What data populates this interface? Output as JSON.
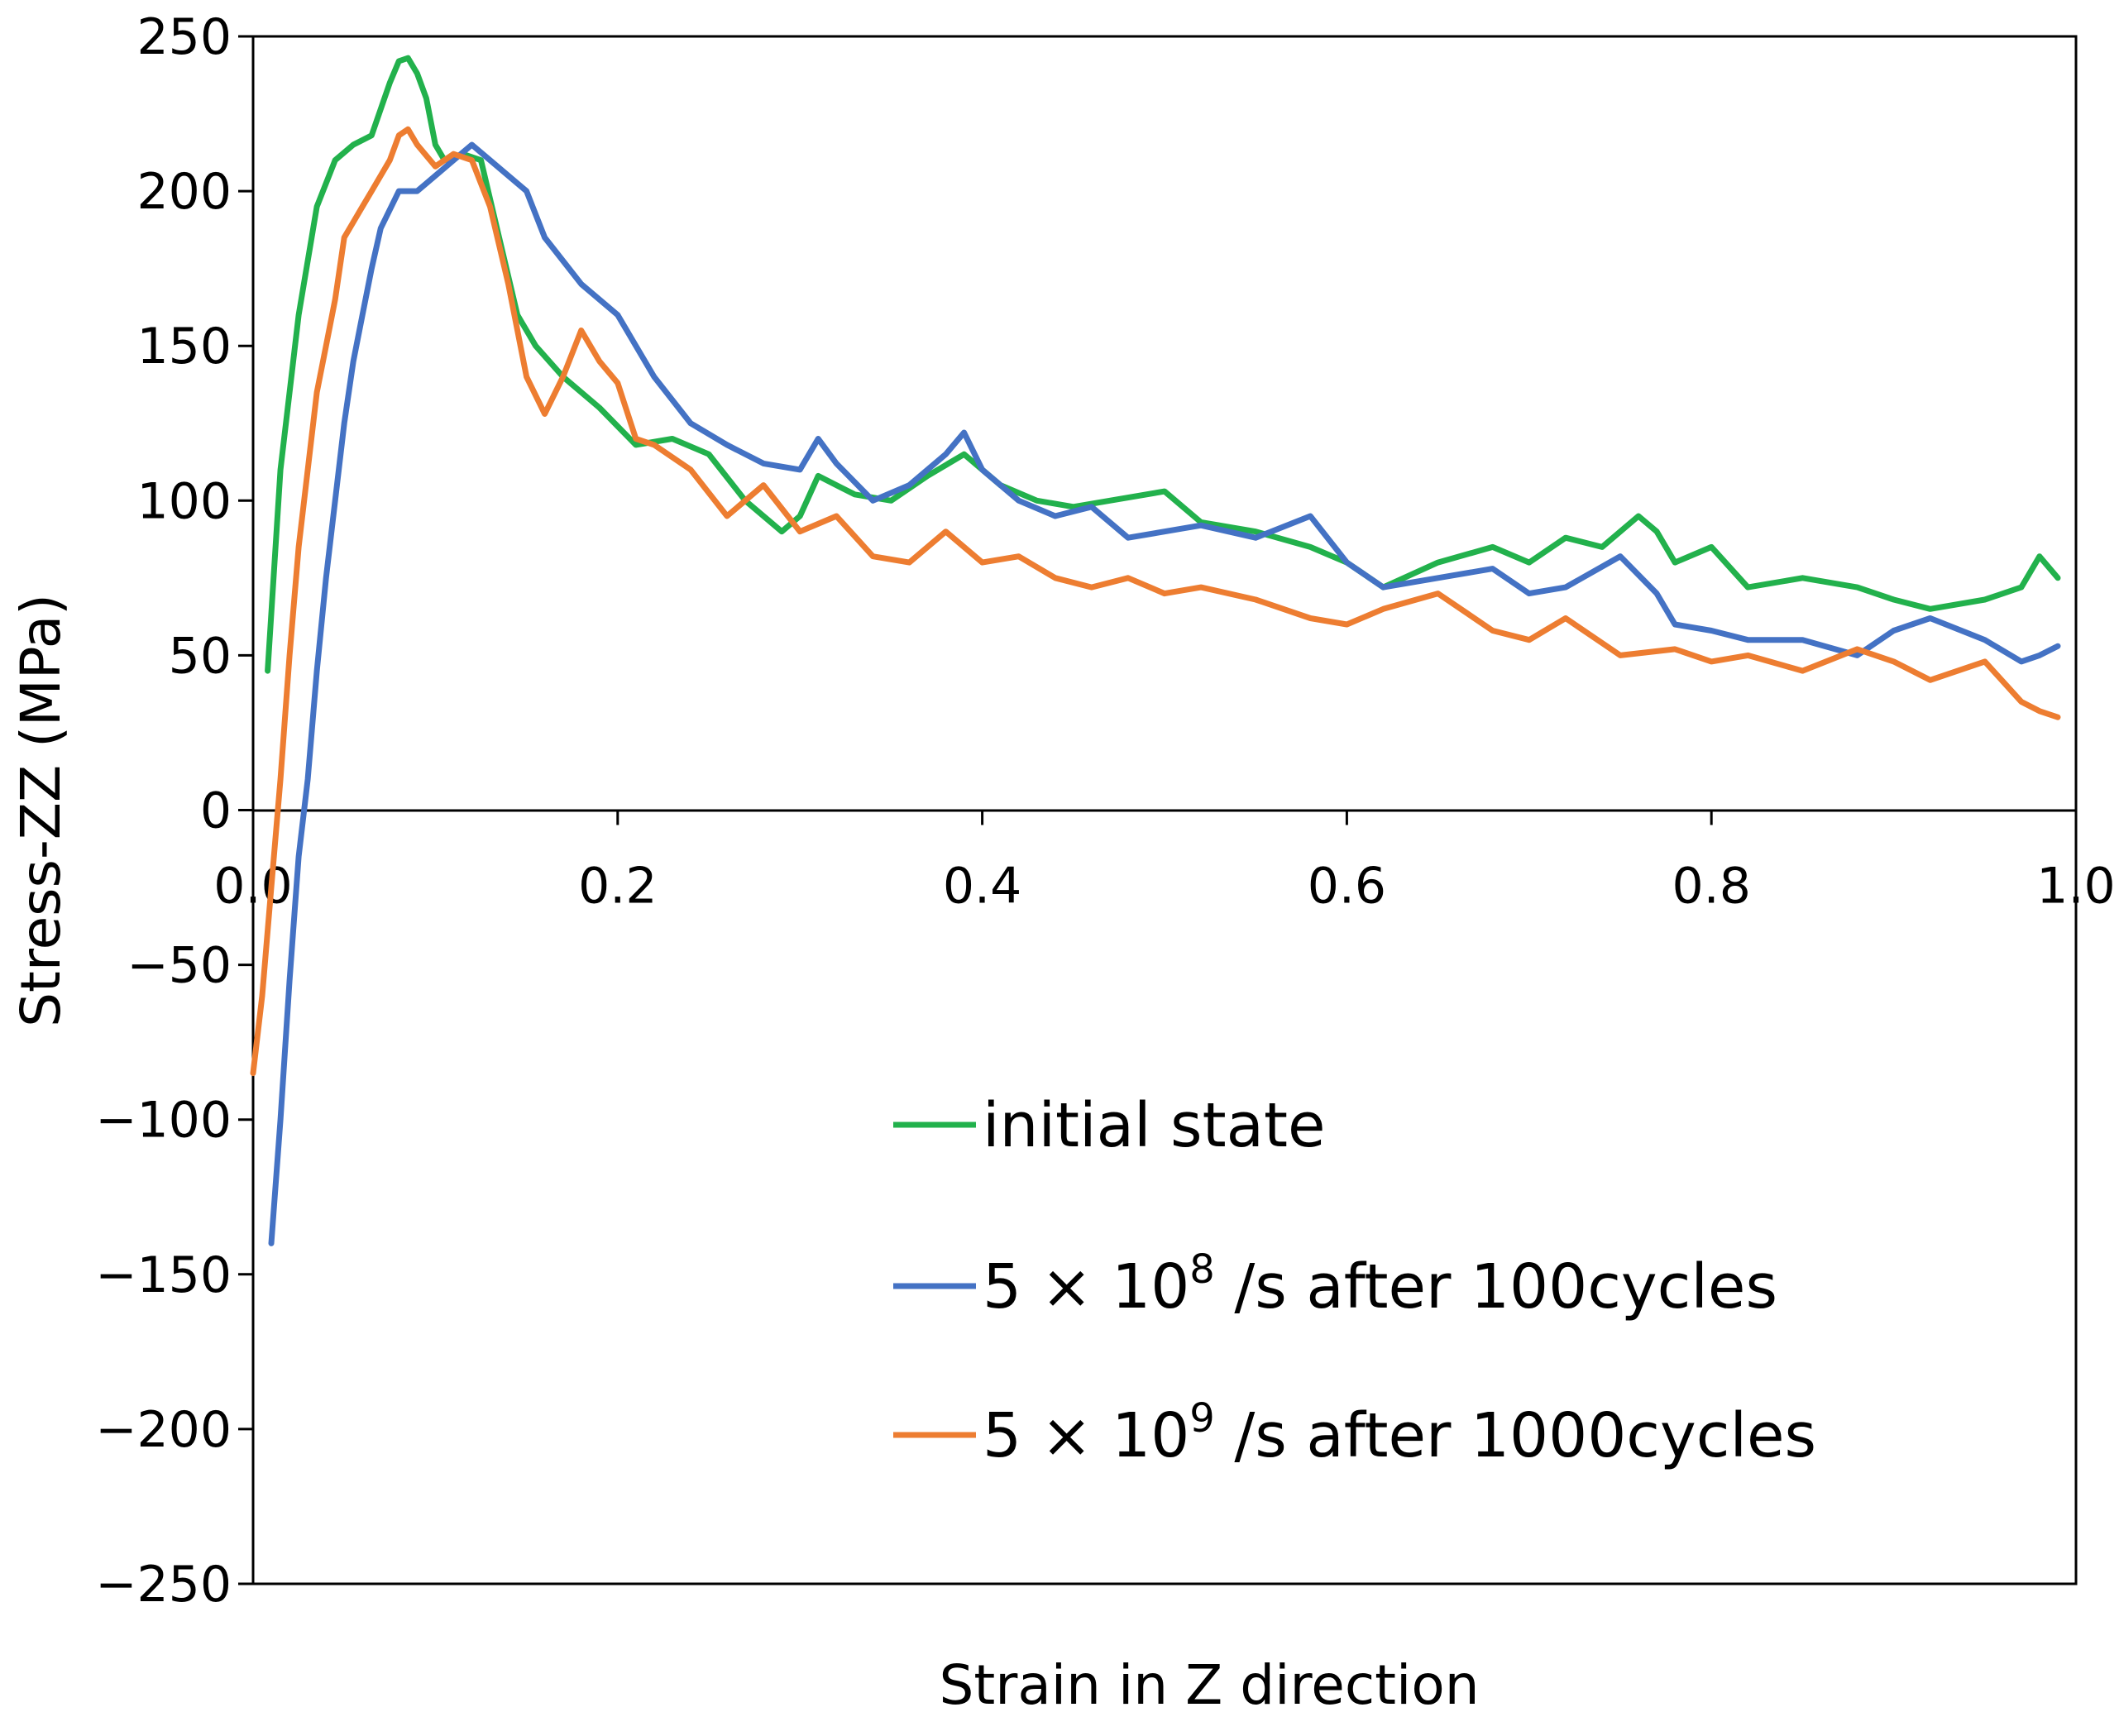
{
  "chart_data": {
    "type": "line",
    "title": "",
    "xlabel": "Strain in Z direction",
    "ylabel": "Stress-ZZ (MPa)",
    "xlim": [
      0.0,
      1.0
    ],
    "ylim": [
      -250,
      250
    ],
    "x_ticks": [
      "0.0",
      "0.2",
      "0.4",
      "0.6",
      "0.8",
      "1.0"
    ],
    "y_ticks": [
      "250",
      "200",
      "150",
      "100",
      "50",
      "0",
      "−50",
      "−100",
      "−150",
      "−200",
      "−250"
    ],
    "grid": false,
    "legend_position": "lower-right",
    "series": [
      {
        "name": "initial state",
        "legend_main": "initial state",
        "legend_sup": "",
        "legend_tail": "",
        "color": "#22b14c",
        "x": [
          0.008,
          0.015,
          0.025,
          0.035,
          0.045,
          0.055,
          0.065,
          0.075,
          0.08,
          0.085,
          0.09,
          0.095,
          0.1,
          0.105,
          0.115,
          0.125,
          0.135,
          0.145,
          0.155,
          0.17,
          0.19,
          0.21,
          0.23,
          0.25,
          0.27,
          0.29,
          0.3,
          0.31,
          0.33,
          0.35,
          0.37,
          0.39,
          0.41,
          0.43,
          0.45,
          0.47,
          0.5,
          0.52,
          0.55,
          0.58,
          0.6,
          0.62,
          0.65,
          0.68,
          0.7,
          0.72,
          0.74,
          0.76,
          0.77,
          0.78,
          0.8,
          0.82,
          0.85,
          0.88,
          0.9,
          0.92,
          0.95,
          0.97,
          0.98,
          0.99
        ],
        "y": [
          45,
          110,
          160,
          195,
          210,
          215,
          218,
          235,
          242,
          243,
          238,
          230,
          215,
          210,
          212,
          210,
          185,
          160,
          150,
          140,
          130,
          118,
          120,
          115,
          100,
          90,
          95,
          108,
          102,
          100,
          108,
          115,
          105,
          100,
          98,
          100,
          103,
          93,
          90,
          85,
          80,
          72,
          80,
          85,
          80,
          88,
          85,
          95,
          90,
          80,
          85,
          72,
          75,
          72,
          68,
          65,
          68,
          72,
          82,
          75
        ]
      },
      {
        "name": "5 × 10⁸ /s after 100cycles",
        "legend_main": "5 × 10",
        "legend_sup": "8",
        "legend_tail": " /s after 100cycles",
        "color": "#4472c4",
        "x": [
          0.01,
          0.015,
          0.02,
          0.025,
          0.03,
          0.035,
          0.04,
          0.045,
          0.05,
          0.055,
          0.06,
          0.065,
          0.07,
          0.08,
          0.09,
          0.1,
          0.11,
          0.12,
          0.13,
          0.14,
          0.15,
          0.16,
          0.18,
          0.2,
          0.22,
          0.24,
          0.26,
          0.28,
          0.3,
          0.31,
          0.32,
          0.34,
          0.36,
          0.38,
          0.39,
          0.4,
          0.42,
          0.44,
          0.46,
          0.48,
          0.5,
          0.52,
          0.55,
          0.58,
          0.6,
          0.62,
          0.65,
          0.68,
          0.7,
          0.72,
          0.75,
          0.77,
          0.78,
          0.8,
          0.82,
          0.85,
          0.88,
          0.9,
          0.92,
          0.95,
          0.97,
          0.98,
          0.99
        ],
        "y": [
          -140,
          -100,
          -55,
          -15,
          10,
          45,
          75,
          100,
          125,
          145,
          160,
          175,
          188,
          200,
          200,
          205,
          210,
          215,
          210,
          205,
          200,
          185,
          170,
          160,
          140,
          125,
          118,
          112,
          110,
          120,
          112,
          100,
          105,
          115,
          122,
          110,
          100,
          95,
          98,
          88,
          90,
          92,
          88,
          95,
          80,
          72,
          75,
          78,
          70,
          72,
          82,
          70,
          60,
          58,
          55,
          55,
          50,
          58,
          62,
          55,
          48,
          50,
          53
        ]
      },
      {
        "name": "5 × 10⁹ /s after 1000cycles",
        "legend_main": "5 × 10",
        "legend_sup": "9",
        "legend_tail": " /s after 1000cycles",
        "color": "#ed7d31",
        "x": [
          0.0,
          0.005,
          0.01,
          0.015,
          0.02,
          0.025,
          0.03,
          0.035,
          0.04,
          0.045,
          0.05,
          0.055,
          0.06,
          0.065,
          0.07,
          0.075,
          0.08,
          0.085,
          0.09,
          0.1,
          0.11,
          0.12,
          0.13,
          0.14,
          0.15,
          0.16,
          0.17,
          0.18,
          0.19,
          0.2,
          0.21,
          0.22,
          0.24,
          0.26,
          0.28,
          0.3,
          0.32,
          0.34,
          0.36,
          0.38,
          0.4,
          0.42,
          0.44,
          0.46,
          0.48,
          0.5,
          0.52,
          0.55,
          0.58,
          0.6,
          0.62,
          0.65,
          0.68,
          0.7,
          0.72,
          0.75,
          0.78,
          0.8,
          0.82,
          0.85,
          0.88,
          0.9,
          0.92,
          0.95,
          0.97,
          0.98,
          0.99
        ],
        "y": [
          -85,
          -60,
          -25,
          10,
          50,
          85,
          110,
          135,
          150,
          165,
          185,
          190,
          195,
          200,
          205,
          210,
          218,
          220,
          215,
          208,
          212,
          210,
          195,
          170,
          140,
          128,
          140,
          155,
          145,
          138,
          120,
          118,
          110,
          95,
          105,
          90,
          95,
          82,
          80,
          90,
          80,
          82,
          75,
          72,
          75,
          70,
          72,
          68,
          62,
          60,
          65,
          70,
          58,
          55,
          62,
          50,
          52,
          48,
          50,
          45,
          52,
          48,
          42,
          48,
          35,
          32,
          30
        ]
      }
    ]
  }
}
